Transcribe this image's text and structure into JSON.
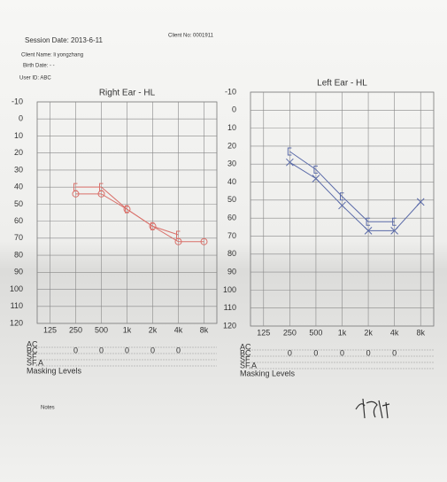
{
  "header": {
    "session_date": "Session Date: 2013-6-11",
    "client_no": "Client No: 0001911",
    "client_name": "Client Name: li yongzhang",
    "birth_date": "Birth Date: - -",
    "user_id": "User ID: ABC"
  },
  "chart_data": [
    {
      "type": "line",
      "title": "Right Ear - HL",
      "categories": [
        "125",
        "250",
        "500",
        "1k",
        "2k",
        "4k",
        "8k"
      ],
      "ylim": [
        120,
        -10
      ],
      "yticks": [
        -10,
        0,
        10,
        20,
        30,
        40,
        50,
        60,
        70,
        80,
        90,
        100,
        110,
        120
      ],
      "grid": true,
      "series": [
        {
          "color": "#d9706a",
          "marker": "circle",
          "values": [
            null,
            44,
            44,
            53,
            63,
            72,
            72
          ]
        },
        {
          "color": "#d9706a",
          "marker": "bracket",
          "values": [
            null,
            40,
            40,
            53,
            63,
            68,
            null
          ]
        }
      ],
      "table": {
        "rows": [
          {
            "label": "AC",
            "values": [
              null,
              null,
              null,
              null,
              null,
              null,
              null
            ]
          },
          {
            "label": "BC",
            "values": [
              null,
              0,
              0,
              0,
              0,
              0,
              null
            ]
          },
          {
            "label": "SF",
            "values": [
              null,
              null,
              null,
              null,
              null,
              null,
              null
            ]
          },
          {
            "label": "SF.A",
            "values": [
              null,
              null,
              null,
              null,
              null,
              null,
              null
            ]
          }
        ],
        "caption": "Masking Levels"
      }
    },
    {
      "type": "line",
      "title": "Left Ear - HL",
      "categories": [
        "125",
        "250",
        "500",
        "1k",
        "2k",
        "4k",
        "8k"
      ],
      "ylim": [
        120,
        -10
      ],
      "yticks": [
        -10,
        0,
        10,
        20,
        30,
        40,
        50,
        60,
        70,
        80,
        90,
        100,
        110,
        120
      ],
      "grid": true,
      "series": [
        {
          "color": "#5a6aa8",
          "marker": "cross",
          "values": [
            null,
            29,
            38,
            53,
            67,
            67,
            51
          ]
        },
        {
          "color": "#5a6aa8",
          "marker": "bracket",
          "values": [
            null,
            23,
            33,
            48,
            62,
            62,
            null
          ]
        }
      ],
      "table": {
        "rows": [
          {
            "label": "AC",
            "values": [
              null,
              null,
              null,
              null,
              null,
              null,
              null
            ]
          },
          {
            "label": "BC",
            "values": [
              null,
              0,
              0,
              0,
              0,
              0,
              null
            ]
          },
          {
            "label": "SF",
            "values": [
              null,
              null,
              null,
              null,
              null,
              null,
              null
            ]
          },
          {
            "label": "SF.A",
            "values": [
              null,
              null,
              null,
              null,
              null,
              null,
              null
            ]
          }
        ],
        "caption": "Masking Levels"
      }
    }
  ],
  "notes": "Notes"
}
